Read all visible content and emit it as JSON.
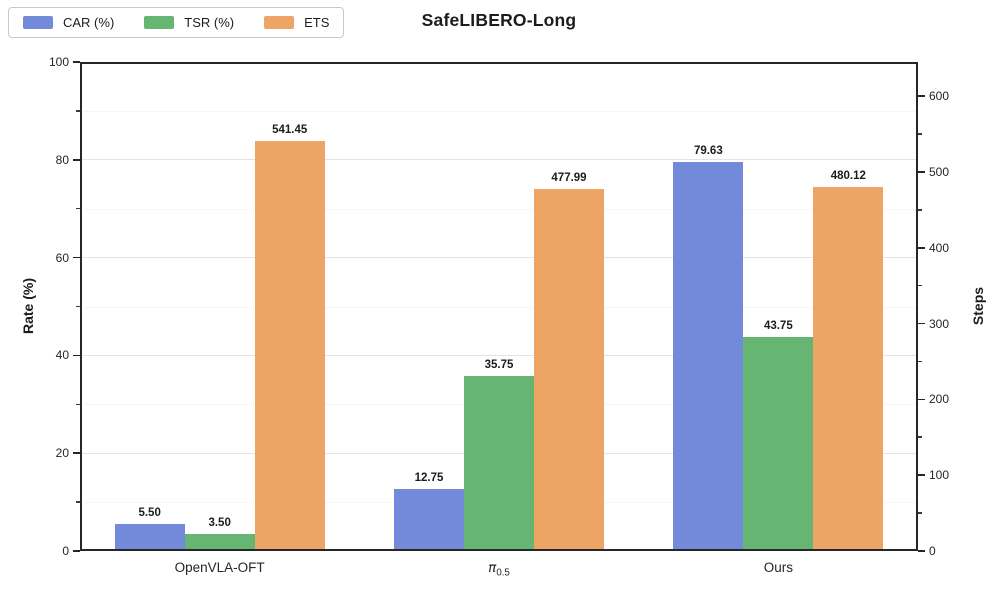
{
  "chart_data": {
    "type": "bar",
    "title": "SafeLIBERO-Long",
    "ylabel_left": "Rate (%)",
    "ylabel_right": "Steps",
    "categories": [
      {
        "text": "OpenVLA-OFT"
      },
      {
        "text": "π",
        "sub": "0.5",
        "italic": true
      },
      {
        "text": "Ours"
      }
    ],
    "series": [
      {
        "name": "CAR (%)",
        "axis": "left",
        "color": "#7389D9",
        "values": [
          5.5,
          12.75,
          79.63
        ],
        "labels": [
          "5.50",
          "12.75",
          "79.63"
        ]
      },
      {
        "name": "TSR (%)",
        "axis": "left",
        "color": "#66B573",
        "values": [
          3.5,
          35.75,
          43.75
        ],
        "labels": [
          "3.50",
          "35.75",
          "43.75"
        ]
      },
      {
        "name": "ETS",
        "axis": "right",
        "color": "#EDA566",
        "values": [
          541.45,
          477.99,
          480.12
        ],
        "labels": [
          "541.45",
          "477.99",
          "480.12"
        ]
      }
    ],
    "axes": {
      "left": {
        "min": 0,
        "max": 100,
        "major_ticks": [
          0,
          20,
          40,
          60,
          80,
          100
        ],
        "minor_step": 10
      },
      "right": {
        "min": 0,
        "max": 645,
        "major_ticks": [
          0,
          100,
          200,
          300,
          400,
          500,
          600
        ],
        "minor_step": 50
      }
    },
    "grid": {
      "major_solid": true,
      "minor_dotted": true,
      "source_axis": "left"
    },
    "legend": {
      "position": "upper left",
      "entries": [
        "CAR (%)",
        "TSR (%)",
        "ETS"
      ]
    },
    "spine_color": "#262626",
    "grid_major_color": "#e4e4e4",
    "grid_minor_color": "#ededed"
  }
}
